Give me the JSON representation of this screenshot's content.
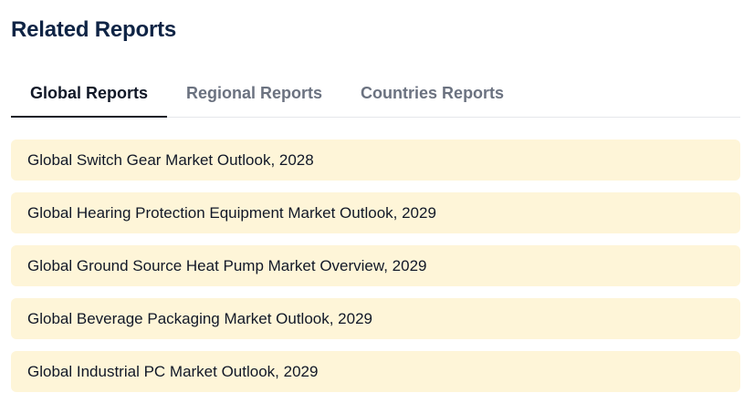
{
  "section": {
    "title": "Related Reports"
  },
  "tabs": [
    {
      "label": "Global Reports",
      "active": true
    },
    {
      "label": "Regional Reports",
      "active": false
    },
    {
      "label": "Countries Reports",
      "active": false
    }
  ],
  "reports": [
    {
      "title": "Global Switch Gear Market Outlook, 2028"
    },
    {
      "title": "Global Hearing Protection Equipment Market Outlook, 2029"
    },
    {
      "title": "Global Ground Source Heat Pump Market Overview, 2029"
    },
    {
      "title": "Global Beverage Packaging Market Outlook, 2029"
    },
    {
      "title": "Global Industrial PC Market Outlook, 2029"
    }
  ],
  "colors": {
    "title": "#0f2445",
    "active_tab": "#111827",
    "inactive_tab": "#6b7280",
    "item_background": "#fef5d8"
  }
}
